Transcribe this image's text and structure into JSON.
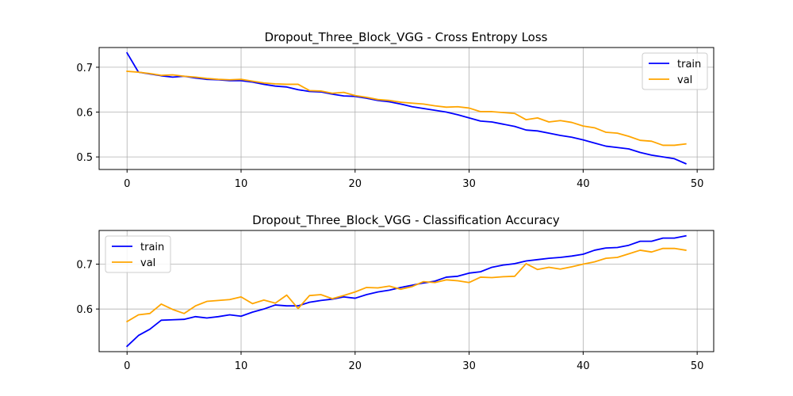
{
  "chart_data": [
    {
      "type": "line",
      "title": "Dropout_Three_Block_VGG - Cross Entropy Loss",
      "xlabel": "",
      "ylabel": "",
      "xlim": [
        -2.45,
        51.45
      ],
      "ylim": [
        0.472,
        0.744
      ],
      "xticks": [
        0,
        10,
        20,
        30,
        40,
        50
      ],
      "yticks": [
        0.5,
        0.6,
        0.7
      ],
      "grid": true,
      "legend_position": "top-right",
      "x": [
        0,
        1,
        2,
        3,
        4,
        5,
        6,
        7,
        8,
        9,
        10,
        11,
        12,
        13,
        14,
        15,
        16,
        17,
        18,
        19,
        20,
        21,
        22,
        23,
        24,
        25,
        26,
        27,
        28,
        29,
        30,
        31,
        32,
        33,
        34,
        35,
        36,
        37,
        38,
        39,
        40,
        41,
        42,
        43,
        44,
        45,
        46,
        47,
        48,
        49
      ],
      "series": [
        {
          "name": "train",
          "color": "#0000ff",
          "values": [
            0.732,
            0.689,
            0.685,
            0.681,
            0.678,
            0.68,
            0.676,
            0.673,
            0.672,
            0.67,
            0.67,
            0.667,
            0.662,
            0.658,
            0.656,
            0.65,
            0.646,
            0.645,
            0.64,
            0.636,
            0.635,
            0.631,
            0.626,
            0.623,
            0.618,
            0.612,
            0.608,
            0.604,
            0.6,
            0.594,
            0.587,
            0.58,
            0.578,
            0.573,
            0.568,
            0.56,
            0.558,
            0.553,
            0.548,
            0.544,
            0.538,
            0.531,
            0.524,
            0.521,
            0.518,
            0.51,
            0.504,
            0.5,
            0.496,
            0.485
          ]
        },
        {
          "name": "val",
          "color": "#ffa500",
          "values": [
            0.691,
            0.689,
            0.686,
            0.682,
            0.683,
            0.68,
            0.678,
            0.675,
            0.673,
            0.672,
            0.673,
            0.669,
            0.665,
            0.663,
            0.662,
            0.662,
            0.648,
            0.647,
            0.642,
            0.644,
            0.637,
            0.633,
            0.628,
            0.626,
            0.622,
            0.62,
            0.618,
            0.614,
            0.611,
            0.612,
            0.609,
            0.601,
            0.601,
            0.599,
            0.597,
            0.583,
            0.587,
            0.578,
            0.581,
            0.577,
            0.569,
            0.565,
            0.555,
            0.553,
            0.546,
            0.537,
            0.535,
            0.526,
            0.526,
            0.529
          ]
        }
      ]
    },
    {
      "type": "line",
      "title": "Dropout_Three_Block_VGG - Classification Accuracy",
      "xlabel": "",
      "ylabel": "",
      "xlim": [
        -2.45,
        51.45
      ],
      "ylim": [
        0.505,
        0.775
      ],
      "xticks": [
        0,
        10,
        20,
        30,
        40,
        50
      ],
      "yticks": [
        0.6,
        0.7
      ],
      "grid": true,
      "legend_position": "top-left",
      "x": [
        0,
        1,
        2,
        3,
        4,
        5,
        6,
        7,
        8,
        9,
        10,
        11,
        12,
        13,
        14,
        15,
        16,
        17,
        18,
        19,
        20,
        21,
        22,
        23,
        24,
        25,
        26,
        27,
        28,
        29,
        30,
        31,
        32,
        33,
        34,
        35,
        36,
        37,
        38,
        39,
        40,
        41,
        42,
        43,
        44,
        45,
        46,
        47,
        48,
        49
      ],
      "series": [
        {
          "name": "train",
          "color": "#0000ff",
          "values": [
            0.517,
            0.541,
            0.555,
            0.575,
            0.576,
            0.577,
            0.583,
            0.58,
            0.583,
            0.587,
            0.584,
            0.593,
            0.6,
            0.609,
            0.607,
            0.607,
            0.615,
            0.619,
            0.622,
            0.627,
            0.624,
            0.632,
            0.638,
            0.642,
            0.648,
            0.653,
            0.658,
            0.662,
            0.671,
            0.673,
            0.68,
            0.683,
            0.693,
            0.698,
            0.701,
            0.707,
            0.71,
            0.713,
            0.715,
            0.718,
            0.722,
            0.731,
            0.736,
            0.737,
            0.742,
            0.751,
            0.751,
            0.758,
            0.758,
            0.763
          ]
        },
        {
          "name": "val",
          "color": "#ffa500",
          "values": [
            0.572,
            0.587,
            0.59,
            0.611,
            0.599,
            0.59,
            0.607,
            0.617,
            0.619,
            0.621,
            0.627,
            0.612,
            0.62,
            0.613,
            0.631,
            0.601,
            0.63,
            0.632,
            0.623,
            0.63,
            0.638,
            0.648,
            0.647,
            0.651,
            0.644,
            0.65,
            0.661,
            0.659,
            0.665,
            0.663,
            0.659,
            0.671,
            0.67,
            0.672,
            0.673,
            0.701,
            0.688,
            0.693,
            0.689,
            0.694,
            0.7,
            0.705,
            0.713,
            0.715,
            0.723,
            0.731,
            0.727,
            0.735,
            0.735,
            0.731
          ]
        }
      ]
    }
  ]
}
